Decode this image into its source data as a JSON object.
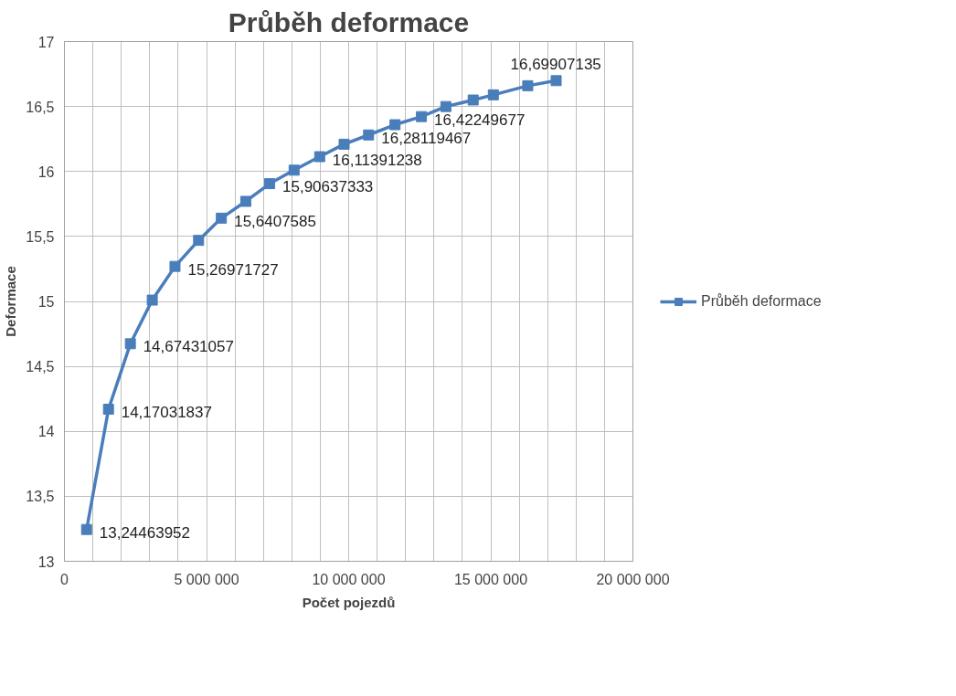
{
  "chart_data": {
    "type": "line",
    "title": "Průběh deformace",
    "xlabel": "Počet pojezdů",
    "ylabel": "Deformace",
    "x": [
      780000,
      1550000,
      2320000,
      3090000,
      3890000,
      4720000,
      5520000,
      6380000,
      7220000,
      8080000,
      8980000,
      9840000,
      10700000,
      11630000,
      12560000,
      13420000,
      14380000,
      15090000,
      16300000,
      17300000
    ],
    "series": [
      {
        "name": "Průběh deformace",
        "color": "#4a7ebb",
        "values": [
          13.24463952,
          14.17031837,
          14.67431057,
          15.01,
          15.26971727,
          15.47,
          15.6407585,
          15.77,
          15.90637333,
          16.01,
          16.11391238,
          16.21,
          16.28119467,
          16.36,
          16.42249677,
          16.5,
          16.55,
          16.59,
          16.66,
          16.69907135
        ],
        "value_labels": [
          "13,24463952",
          "14,17031837",
          "14,67431057",
          null,
          "15,26971727",
          null,
          "15,6407585",
          null,
          "15,90637333",
          null,
          "16,11391238",
          null,
          "16,28119467",
          null,
          "16,42249677",
          null,
          null,
          null,
          null,
          "16,69907135"
        ]
      }
    ],
    "xlim": [
      0,
      20000000
    ],
    "xticks": [
      0,
      {
        "value": 1000000,
        "label": null
      },
      {
        "value": 2000000,
        "label": null
      },
      {
        "value": 3000000,
        "label": null
      },
      {
        "value": 4000000,
        "label": null
      },
      {
        "value": 5000000,
        "label": "5 000 000"
      },
      {
        "value": 6000000,
        "label": null
      },
      {
        "value": 7000000,
        "label": null
      },
      {
        "value": 8000000,
        "label": null
      },
      {
        "value": 9000000,
        "label": null
      },
      {
        "value": 10000000,
        "label": "10 000 000"
      },
      {
        "value": 11000000,
        "label": null
      },
      {
        "value": 12000000,
        "label": null
      },
      {
        "value": 13000000,
        "label": null
      },
      {
        "value": 14000000,
        "label": null
      },
      {
        "value": 15000000,
        "label": "15 000 000"
      },
      {
        "value": 16000000,
        "label": null
      },
      {
        "value": 17000000,
        "label": null
      },
      {
        "value": 18000000,
        "label": null
      },
      {
        "value": 19000000,
        "label": null
      },
      {
        "value": 20000000,
        "label": "20 000 000"
      }
    ],
    "ylim": [
      13,
      17
    ],
    "yticks": [
      13,
      {
        "value": 13.5,
        "label": "13,5"
      },
      14,
      {
        "value": 14.5,
        "label": "14,5"
      },
      15,
      {
        "value": 15.5,
        "label": "15,5"
      },
      16,
      {
        "value": 16.5,
        "label": "16,5"
      },
      17
    ],
    "grid": true,
    "legend": "right",
    "marker": "square",
    "line_style": "solid"
  }
}
